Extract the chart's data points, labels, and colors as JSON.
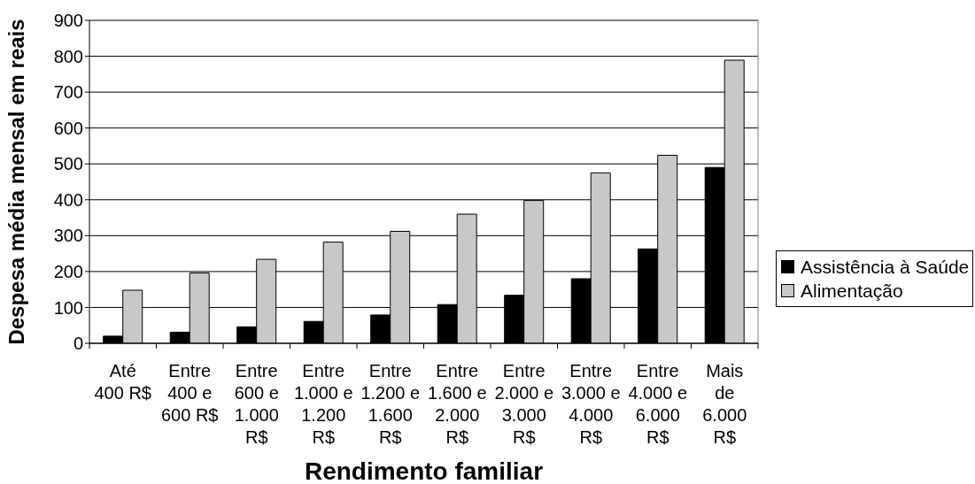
{
  "chart_data": {
    "type": "bar",
    "xlabel": "Rendimento familiar",
    "ylabel": "Despesa média mensal em reais",
    "categories": [
      "Até 400 R$",
      "Entre 400 e 600 R$",
      "Entre 600 e 1.000 R$",
      "Entre 1.000 e 1.200 R$",
      "Entre 1.200 e 1.600 R$",
      "Entre 1.600 e 2.000 R$",
      "Entre 2.000 e 3.000 R$",
      "Entre 3.000 e 4.000 R$",
      "Entre 4.000 e 6.000 R$",
      "Mais de 6.000 R$"
    ],
    "series": [
      {
        "name": "Assistência à Saúde",
        "color": "#000000",
        "values": [
          20,
          31,
          46,
          61,
          79,
          108,
          134,
          180,
          263,
          490
        ]
      },
      {
        "name": "Alimentação",
        "color": "#c8c8c8",
        "values": [
          148,
          196,
          234,
          282,
          312,
          360,
          398,
          475,
          524,
          789
        ]
      }
    ],
    "ylim": [
      0,
      900
    ],
    "yticks": [
      0,
      100,
      200,
      300,
      400,
      500,
      600,
      700,
      800,
      900
    ],
    "grid": "y",
    "legend": "right"
  }
}
